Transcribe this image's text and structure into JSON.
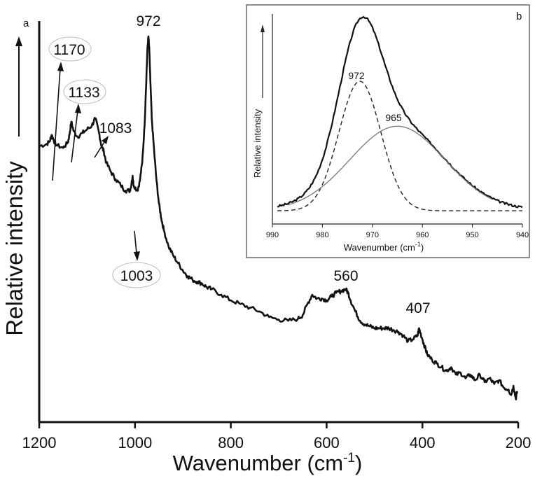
{
  "chart_data": [
    {
      "type": "line",
      "panel": "a",
      "xlabel": "Wavenumber (cm",
      "xlabel_sup": "-1",
      "xlabel_end": ")",
      "ylabel": "Relative intensity",
      "xlim": [
        1200,
        200
      ],
      "x_reversed": true,
      "ylim": [
        0,
        1
      ],
      "x_ticks": [
        1200,
        1000,
        800,
        600,
        400,
        200
      ],
      "x_tick_labels": [
        "1200",
        "1000",
        "800",
        "600",
        "400",
        "200"
      ],
      "y_ticks": [],
      "grid": false,
      "annotations": [
        {
          "text": "972",
          "x": 972
        },
        {
          "text": "1170",
          "x": 1170,
          "circled": true
        },
        {
          "text": "1133",
          "x": 1133,
          "circled": true
        },
        {
          "text": "1083",
          "x": 1083
        },
        {
          "text": "1003",
          "x": 1003,
          "circled": true
        },
        {
          "text": "560",
          "x": 560
        },
        {
          "text": "407",
          "x": 407
        }
      ],
      "series": [
        {
          "x": [
            1200,
            1185,
            1178,
            1174,
            1170,
            1165,
            1150,
            1140,
            1137,
            1133,
            1128,
            1120,
            1110,
            1100,
            1090,
            1083,
            1075,
            1070,
            1065,
            1060,
            1050,
            1040,
            1030,
            1020,
            1010,
            1005,
            1003,
            995,
            990,
            985,
            980,
            976,
            974,
            972,
            970,
            968,
            965,
            960,
            955,
            950,
            945,
            940,
            930,
            920,
            910,
            900,
            890,
            880,
            870,
            860,
            850,
            840,
            820,
            800,
            780,
            760,
            740,
            720,
            700,
            680,
            660,
            650,
            640,
            630,
            620,
            610,
            600,
            590,
            580,
            570,
            560,
            555,
            550,
            540,
            530,
            520,
            510,
            500,
            490,
            480,
            470,
            460,
            450,
            440,
            430,
            420,
            410,
            407,
            400,
            395,
            390,
            380,
            370,
            360,
            350,
            340,
            330,
            320,
            310,
            300,
            290,
            280,
            270,
            260,
            250,
            240,
            230,
            220,
            215,
            210,
            205,
            202
          ],
          "y": [
            0.705,
            0.71,
            0.718,
            0.735,
            0.722,
            0.708,
            0.7,
            0.715,
            0.735,
            0.77,
            0.745,
            0.73,
            0.74,
            0.75,
            0.76,
            0.78,
            0.74,
            0.705,
            0.69,
            0.66,
            0.635,
            0.615,
            0.6,
            0.585,
            0.585,
            0.625,
            0.6,
            0.585,
            0.61,
            0.66,
            0.76,
            0.9,
            0.97,
            1.0,
            0.96,
            0.88,
            0.78,
            0.69,
            0.61,
            0.55,
            0.51,
            0.48,
            0.435,
            0.41,
            0.39,
            0.37,
            0.355,
            0.345,
            0.34,
            0.335,
            0.325,
            0.32,
            0.305,
            0.29,
            0.28,
            0.27,
            0.26,
            0.245,
            0.238,
            0.235,
            0.24,
            0.25,
            0.28,
            0.305,
            0.295,
            0.295,
            0.29,
            0.3,
            0.31,
            0.315,
            0.32,
            0.31,
            0.29,
            0.26,
            0.235,
            0.225,
            0.22,
            0.215,
            0.215,
            0.215,
            0.215,
            0.21,
            0.205,
            0.195,
            0.18,
            0.185,
            0.195,
            0.215,
            0.185,
            0.165,
            0.145,
            0.13,
            0.12,
            0.11,
            0.1,
            0.11,
            0.09,
            0.095,
            0.08,
            0.09,
            0.075,
            0.09,
            0.07,
            0.08,
            0.065,
            0.075,
            0.055,
            0.05,
            0.035,
            0.06,
            0.025,
            0.045
          ]
        }
      ]
    },
    {
      "type": "line",
      "panel": "b",
      "xlabel": "Wavenumber (cm",
      "xlabel_sup": "-1",
      "xlabel_end": ")",
      "ylabel": "Relative intensity",
      "xlim": [
        990,
        940
      ],
      "x_reversed": true,
      "ylim": [
        0,
        1
      ],
      "x_ticks": [
        990,
        980,
        970,
        960,
        950,
        940
      ],
      "x_tick_labels": [
        "990",
        "980",
        "970",
        "960",
        "950",
        "940"
      ],
      "grid": false,
      "annotations": [
        {
          "text": "972",
          "x": 972
        },
        {
          "text": "965",
          "x": 965
        }
      ],
      "series": [
        {
          "style": "solid-dark",
          "center": 971.5,
          "width": 9.5
        },
        {
          "style": "dashed",
          "center": 972.5,
          "amplitude": 0.72,
          "sigma": 4.2
        },
        {
          "style": "solid-gray",
          "center": 965,
          "amplitude": 0.47,
          "sigma": 9.5
        }
      ]
    }
  ]
}
